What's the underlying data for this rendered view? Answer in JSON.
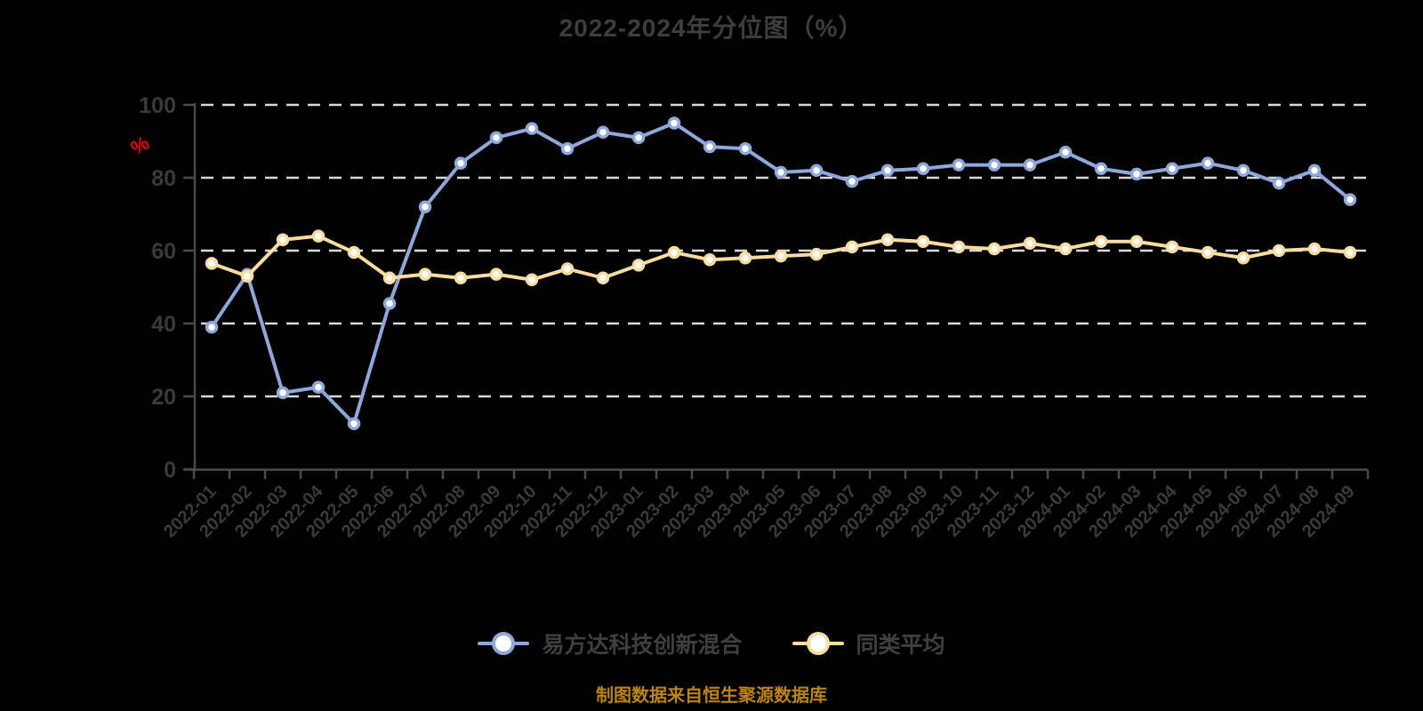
{
  "header": {
    "title": "2022-2024年分位图（%）"
  },
  "y_axis": {
    "unit_label": "%",
    "unit_color": "#ee0000",
    "tick_labels": [
      "0",
      "20",
      "40",
      "60",
      "80",
      "100"
    ]
  },
  "legend": [
    {
      "label": "易方达科技创新混合",
      "color": "#8FA8DC"
    },
    {
      "label": "同类平均",
      "color": "#F8DCA0"
    }
  ],
  "footer": {
    "source": "制图数据来自恒生聚源数据库",
    "color": "#bd8312"
  },
  "colors": {
    "background": "#000000",
    "gridline": "#d9d9d9",
    "axis": "#4a4a4a",
    "axis_label": "#3a3a3a",
    "title": "#3d3d3d",
    "marker_fill": "#ffffff"
  },
  "chart_data": {
    "type": "line",
    "title": "2022-2024年分位图（%）",
    "xlabel": "",
    "ylabel": "%",
    "ylim": [
      0,
      100
    ],
    "yticks": [
      0,
      20,
      40,
      60,
      80,
      100
    ],
    "grid": "horizontal-dashed",
    "legend_position": "bottom",
    "x": [
      "2022-01",
      "2022-02",
      "2022-03",
      "2022-04",
      "2022-05",
      "2022-06",
      "2022-07",
      "2022-08",
      "2022-09",
      "2022-10",
      "2022-11",
      "2022-12",
      "2023-01",
      "2023-02",
      "2023-03",
      "2023-04",
      "2023-05",
      "2023-06",
      "2023-07",
      "2023-08",
      "2023-09",
      "2023-10",
      "2023-11",
      "2023-12",
      "2024-01",
      "2024-02",
      "2024-03",
      "2024-04",
      "2024-05",
      "2024-06",
      "2024-07",
      "2024-08",
      "2024-09"
    ],
    "series": [
      {
        "name": "易方达科技创新混合",
        "color": "#8FA8DC",
        "values": [
          39,
          53.5,
          21,
          22.5,
          12.5,
          45.5,
          72,
          84,
          91,
          93.5,
          88,
          92.5,
          91,
          95,
          88.5,
          88,
          81.5,
          82,
          79,
          82,
          82.5,
          83.5,
          83.5,
          83.5,
          87,
          82.5,
          81,
          82.5,
          84,
          82,
          78.5,
          82,
          74
        ]
      },
      {
        "name": "同类平均",
        "color": "#F8DCA0",
        "values": [
          56.5,
          53,
          63,
          64,
          59.5,
          52.5,
          53.5,
          52.5,
          53.5,
          52,
          55,
          52.5,
          56,
          59.5,
          57.5,
          58,
          58.5,
          59,
          61,
          63,
          62.5,
          61,
          60.5,
          62,
          60.5,
          62.5,
          62.5,
          61,
          59.5,
          58,
          60,
          60.5,
          59.5
        ]
      }
    ]
  }
}
